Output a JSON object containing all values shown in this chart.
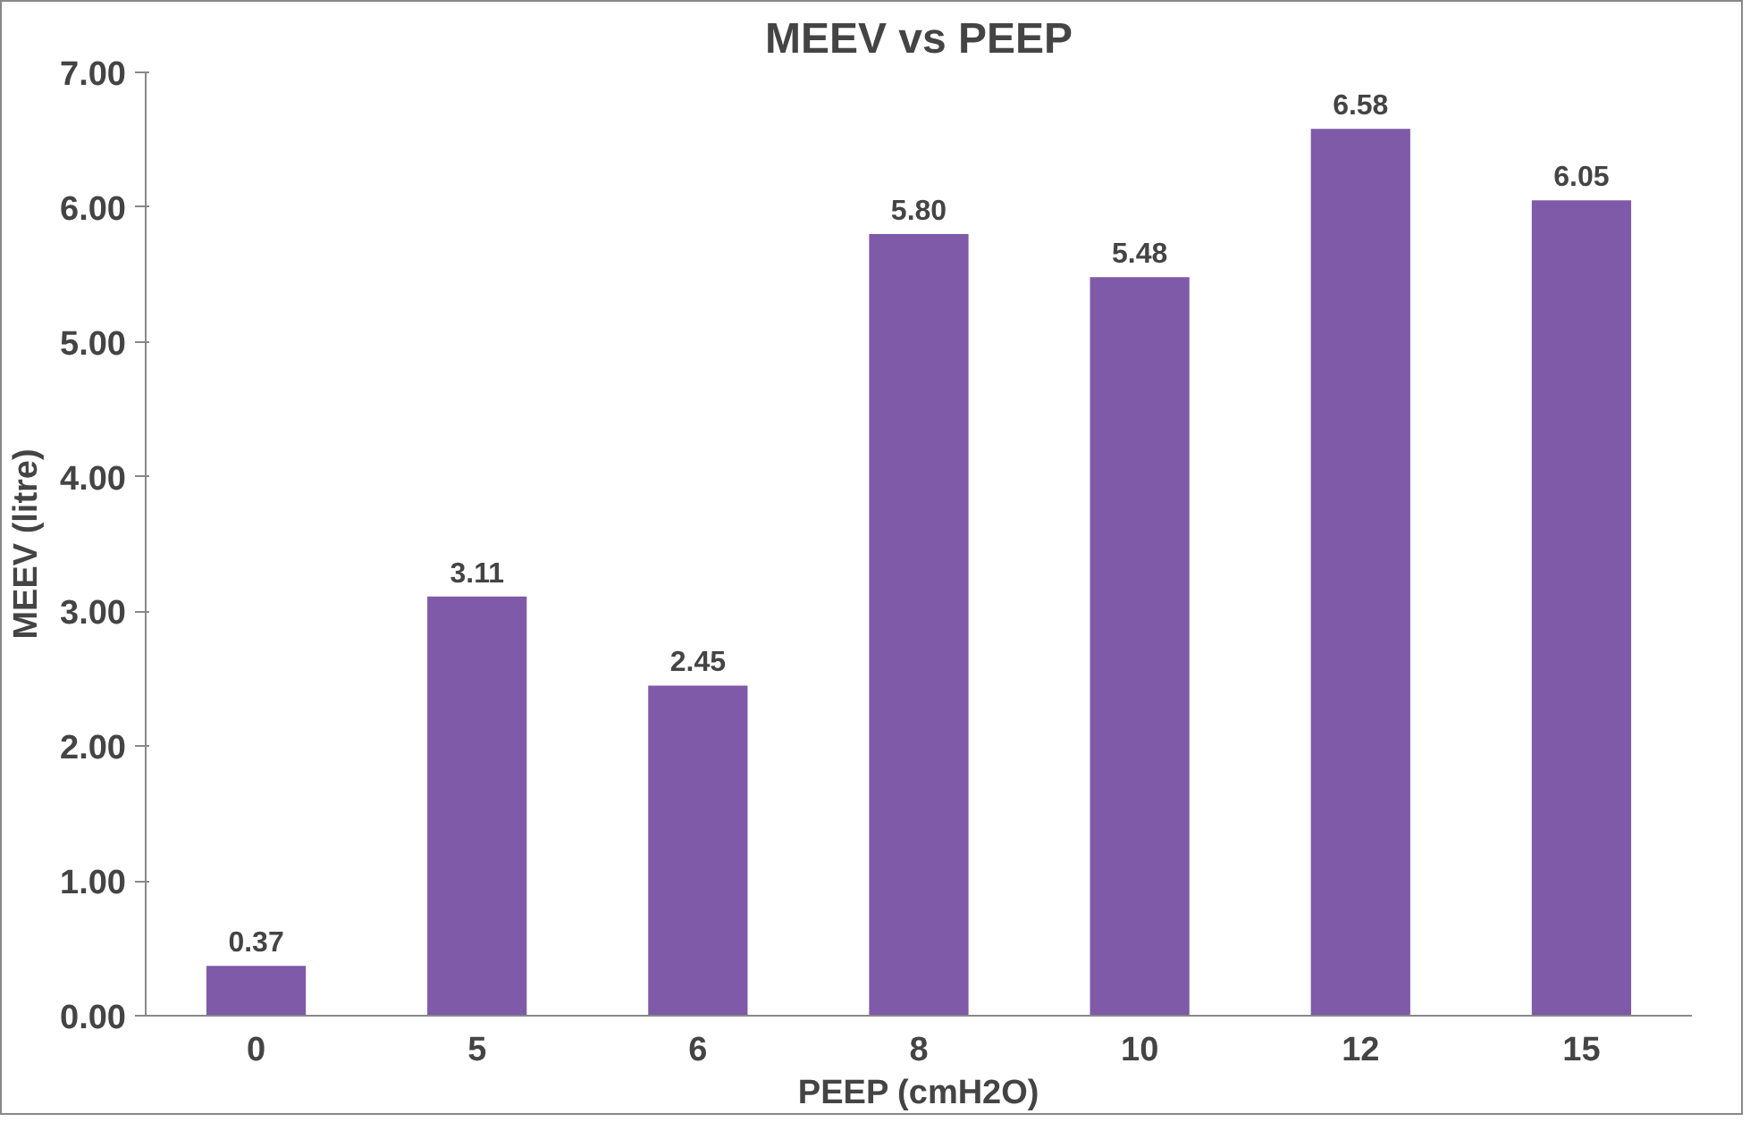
{
  "chart_data": {
    "type": "bar",
    "title": "MEEV vs PEEP",
    "xlabel": "PEEP (cmH2O)",
    "ylabel": "MEEV (litre)",
    "categories": [
      "0",
      "5",
      "6",
      "8",
      "10",
      "12",
      "15"
    ],
    "values": [
      0.37,
      3.11,
      2.45,
      5.8,
      5.48,
      6.58,
      6.05
    ],
    "value_labels": [
      "0.37",
      "3.11",
      "2.45",
      "5.80",
      "5.48",
      "6.58",
      "6.05"
    ],
    "color": "#7e5aa8",
    "ylim": [
      0,
      7
    ],
    "yticks": [
      {
        "value": 0,
        "label": "0.00"
      },
      {
        "value": 1,
        "label": "1.00"
      },
      {
        "value": 2,
        "label": "2.00"
      },
      {
        "value": 3,
        "label": "3.00"
      },
      {
        "value": 4,
        "label": "4.00"
      },
      {
        "value": 5,
        "label": "5.00"
      },
      {
        "value": 6,
        "label": "6.00"
      },
      {
        "value": 7,
        "label": "7.00"
      }
    ],
    "grid": false
  }
}
